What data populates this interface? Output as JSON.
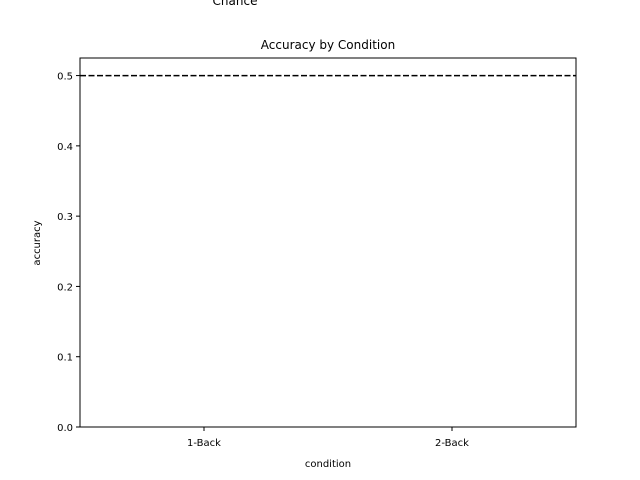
{
  "chart_data": {
    "type": "bar",
    "title": "Accuracy by Condition",
    "xlabel": "condition",
    "ylabel": "accuracy",
    "categories": [
      "1-Back",
      "2-Back"
    ],
    "values": [
      null,
      null
    ],
    "ylim": [
      0,
      0.525
    ],
    "yticks": [
      "0.0",
      "0.1",
      "0.2",
      "0.3",
      "0.4",
      "0.5"
    ],
    "reference_line": {
      "value": 0.5,
      "style": "dashed",
      "color": "#000000"
    },
    "annotations": [
      {
        "text": "Chance"
      }
    ],
    "grid": false
  }
}
